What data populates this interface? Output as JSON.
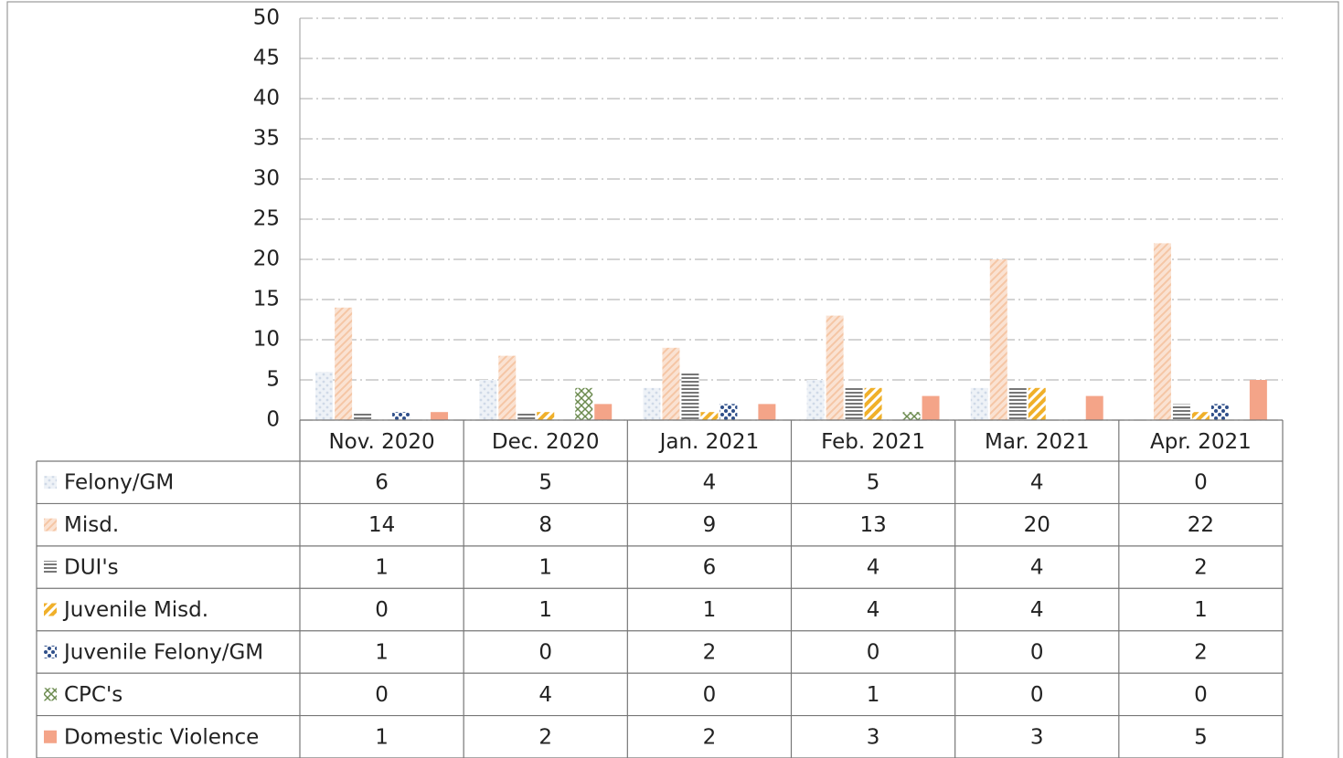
{
  "chart_data": {
    "type": "bar",
    "categories": [
      "Nov. 2020",
      "Dec. 2020",
      "Jan. 2021",
      "Feb. 2021",
      "Mar. 2021",
      "Apr. 2021"
    ],
    "series": [
      {
        "name": "Felony/GM",
        "color": "#cfd8e6",
        "values": [
          6,
          5,
          4,
          5,
          4,
          0
        ]
      },
      {
        "name": "Misd.",
        "color": "#f5c6a5",
        "values": [
          14,
          8,
          9,
          13,
          20,
          22
        ]
      },
      {
        "name": "DUI's",
        "color": "#4a4a4a",
        "values": [
          1,
          1,
          6,
          4,
          4,
          2
        ]
      },
      {
        "name": "Juvenile Misd.",
        "color": "#f0b02a",
        "values": [
          0,
          1,
          1,
          4,
          4,
          1
        ]
      },
      {
        "name": "Juvenile Felony/GM",
        "color": "#2f4f8a",
        "values": [
          1,
          0,
          2,
          0,
          0,
          2
        ]
      },
      {
        "name": "CPC's",
        "color": "#6b8a4e",
        "values": [
          0,
          4,
          0,
          1,
          0,
          0
        ]
      },
      {
        "name": "Domestic Violence",
        "color": "#f4a488",
        "values": [
          1,
          2,
          2,
          3,
          3,
          5
        ]
      }
    ],
    "ylim": [
      0,
      50
    ],
    "yticks": [
      0,
      5,
      10,
      15,
      20,
      25,
      30,
      35,
      40,
      45,
      50
    ],
    "grid": true,
    "data_table": true
  }
}
